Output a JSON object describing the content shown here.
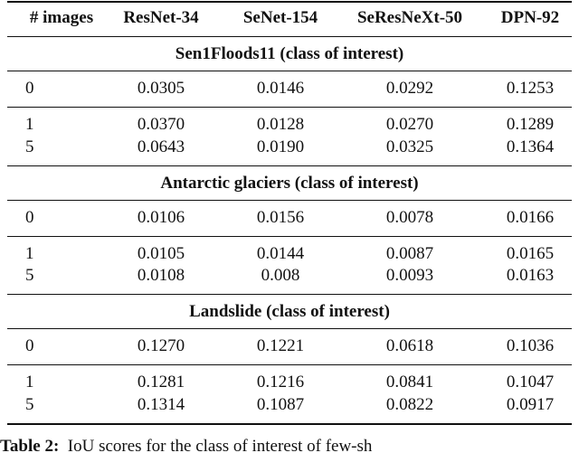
{
  "table": {
    "headers": [
      "# images",
      "ResNet-34",
      "SeNet-154",
      "SeResNeXt-50",
      "DPN-92"
    ],
    "sections": [
      {
        "title": "Sen1Floods11 (class of interest)",
        "groups": [
          [
            [
              "0",
              "0.0305",
              "0.0146",
              "0.0292",
              "0.1253"
            ]
          ],
          [
            [
              "1",
              "0.0370",
              "0.0128",
              "0.0270",
              "0.1289"
            ],
            [
              "5",
              "0.0643",
              "0.0190",
              "0.0325",
              "0.1364"
            ]
          ]
        ]
      },
      {
        "title": "Antarctic glaciers (class of interest)",
        "groups": [
          [
            [
              "0",
              "0.0106",
              "0.0156",
              "0.0078",
              "0.0166"
            ]
          ],
          [
            [
              "1",
              "0.0105",
              "0.0144",
              "0.0087",
              "0.0165"
            ],
            [
              "5",
              "0.0108",
              "0.008",
              "0.0093",
              "0.0163"
            ]
          ]
        ]
      },
      {
        "title": "Landslide (class of interest)",
        "groups": [
          [
            [
              "0",
              "0.1270",
              "0.1221",
              "0.0618",
              "0.1036"
            ]
          ],
          [
            [
              "1",
              "0.1281",
              "0.1216",
              "0.0841",
              "0.1047"
            ],
            [
              "5",
              "0.1314",
              "0.1087",
              "0.0822",
              "0.0917"
            ]
          ]
        ]
      }
    ]
  },
  "caption": {
    "label": "Table 2:",
    "text": "IoU scores for the class of interest of few-sh"
  }
}
